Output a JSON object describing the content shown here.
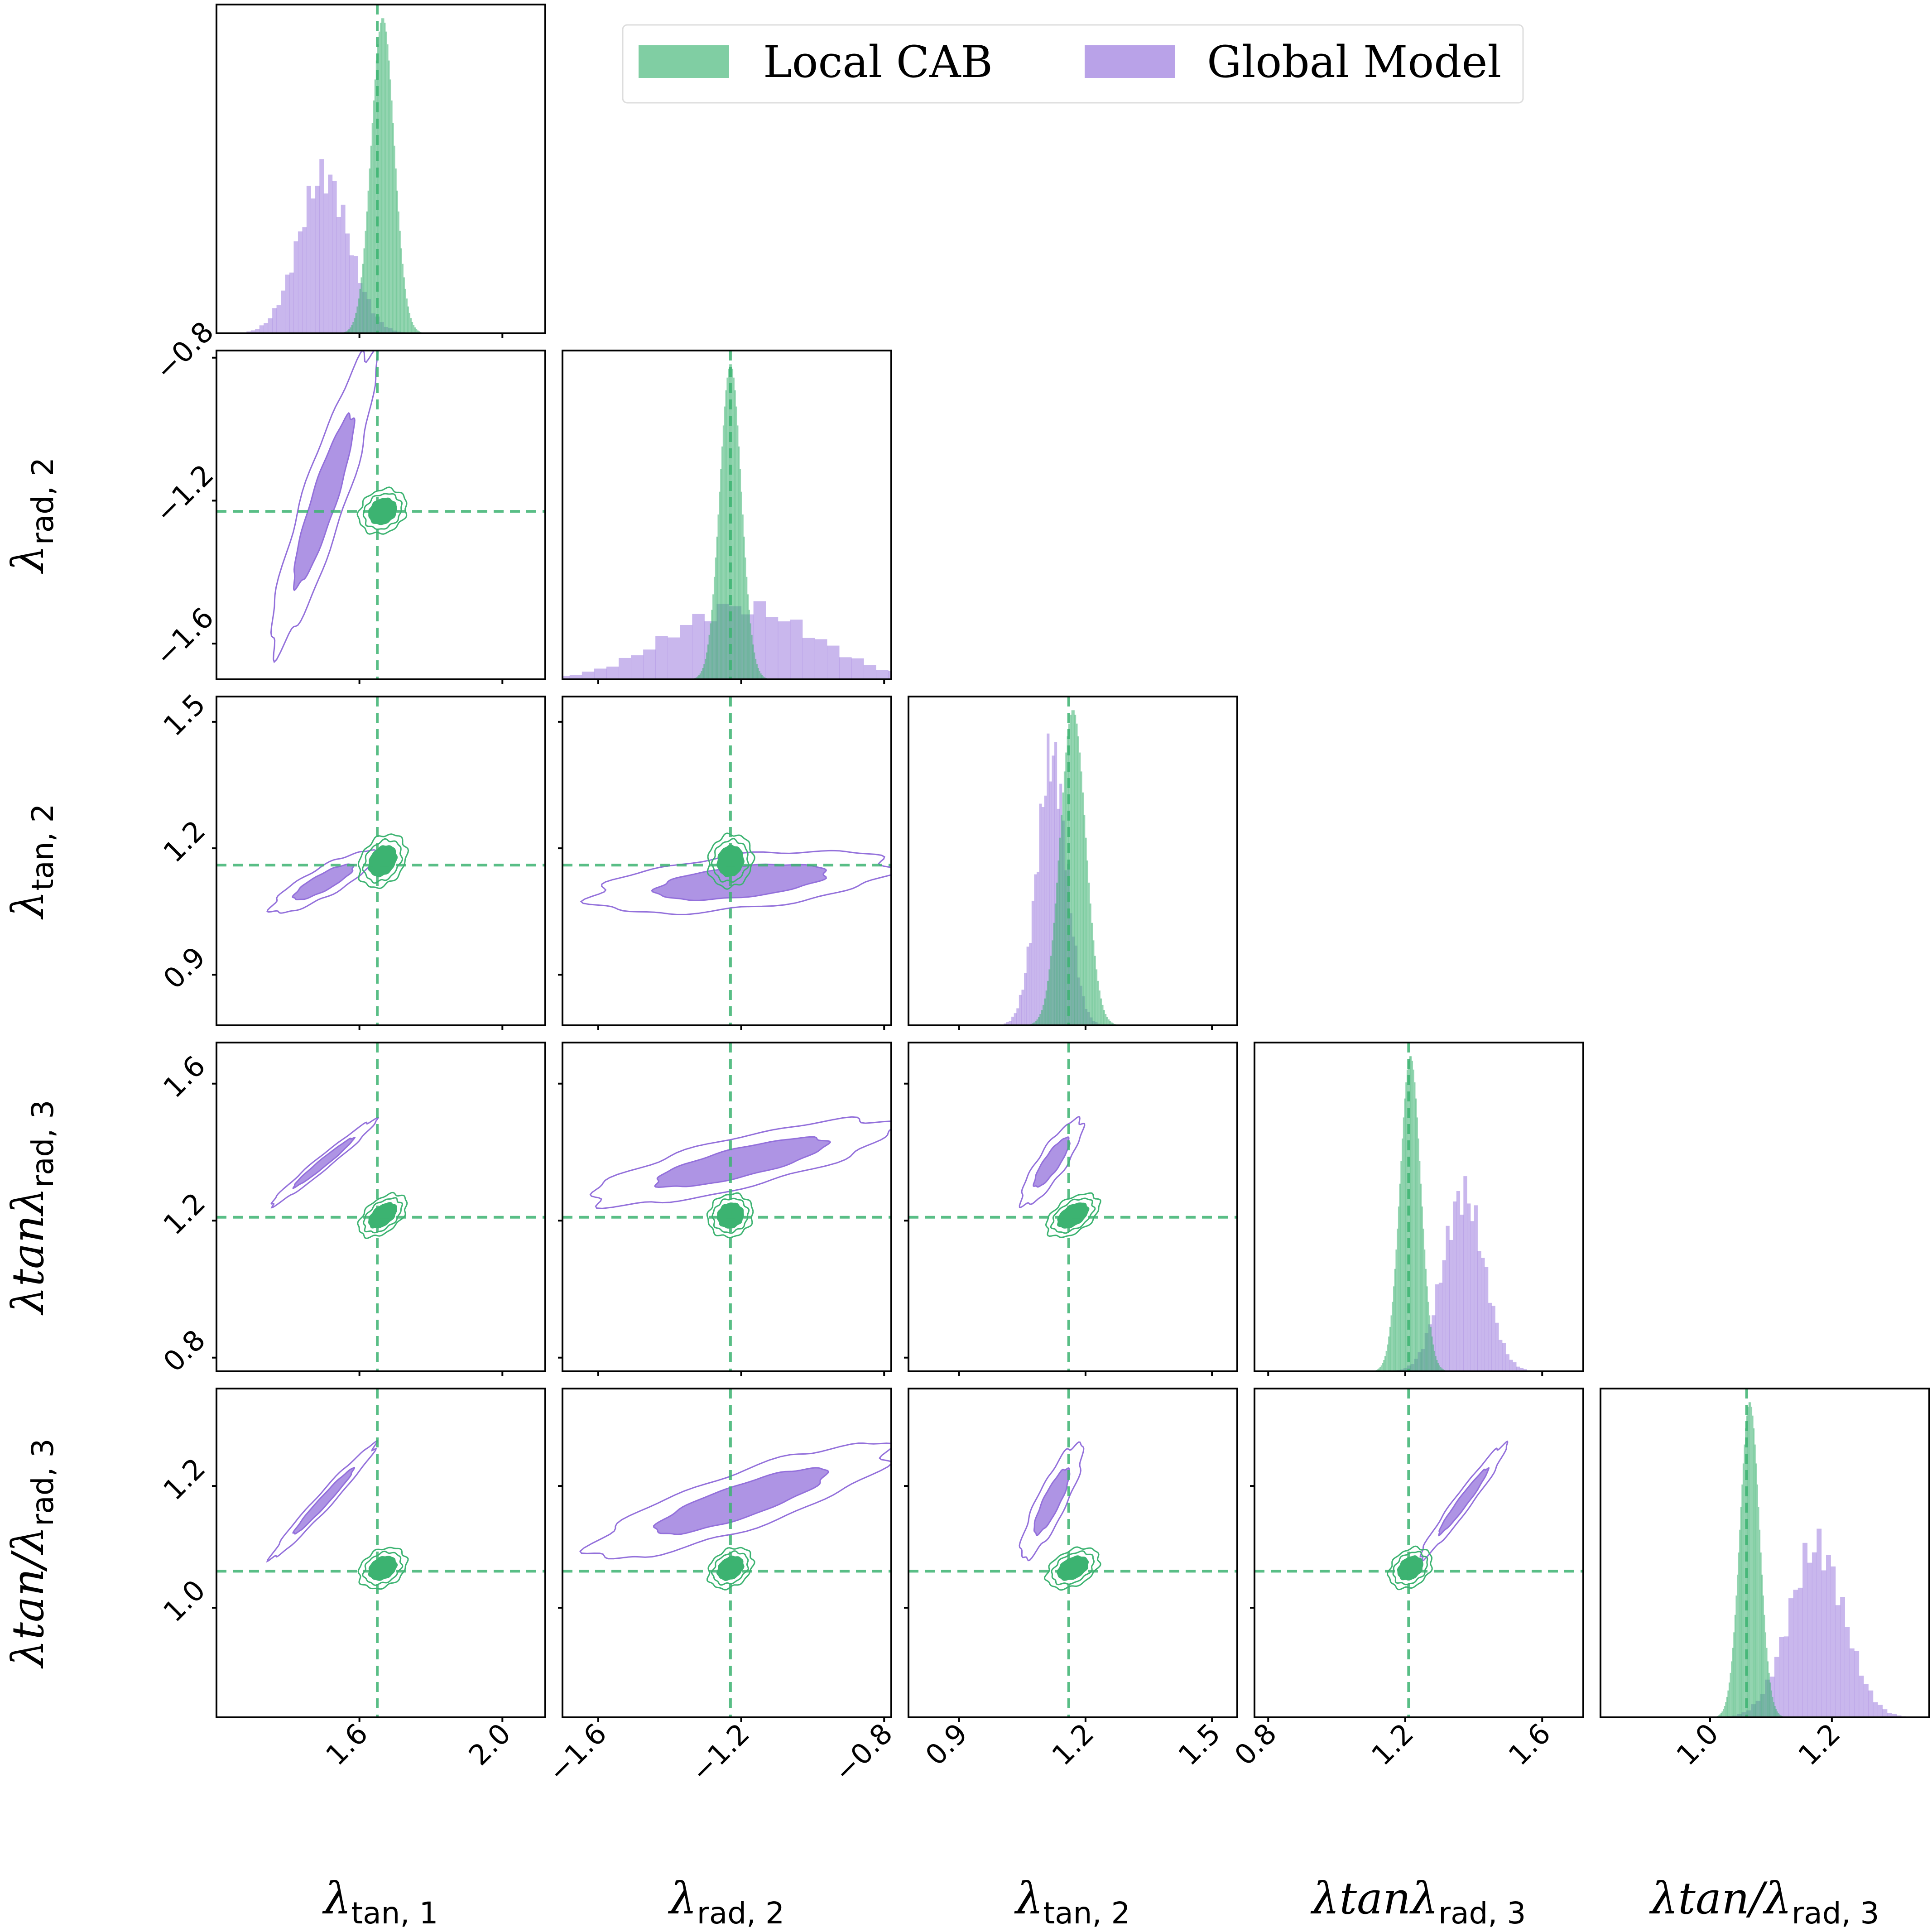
{
  "chart_data": {
    "type": "corner",
    "legend": {
      "placement": "top-center",
      "entries": [
        {
          "label": "Local CAB",
          "color": "#3cb371"
        },
        {
          "label": "Global Model",
          "color": "#9370db"
        }
      ]
    },
    "colors": {
      "local": "#3cb371",
      "global": "#9370db",
      "truth": "#3cb371"
    },
    "parameters": [
      {
        "name": "λtan,1",
        "sym": "λ",
        "sub": "tan, 1",
        "range": [
          1.2,
          2.12
        ],
        "ticks": [
          1.6,
          2.0
        ],
        "tick_labels": [
          "1.6",
          "2.0"
        ],
        "truth": 1.65
      },
      {
        "name": "λrad,2",
        "sym": "λ",
        "sub": "rad, 2",
        "range": [
          -1.7,
          -0.78
        ],
        "ticks": [
          -1.6,
          -1.2,
          -0.8
        ],
        "tick_labels": [
          "−1.6",
          "−1.2",
          "−0.8"
        ],
        "truth": -1.23
      },
      {
        "name": "λtan,2",
        "sym": "λ",
        "sub": "tan, 2",
        "range": [
          0.78,
          1.56
        ],
        "ticks": [
          0.9,
          1.2,
          1.5
        ],
        "tick_labels": [
          "0.9",
          "1.2",
          "1.5"
        ],
        "truth": 1.16
      },
      {
        "name": "λtanλrad,3",
        "sym": "λtanλ",
        "sub": "rad, 3",
        "range": [
          0.76,
          1.72
        ],
        "ticks": [
          0.8,
          1.2,
          1.6
        ],
        "tick_labels": [
          "0.8",
          "1.2",
          "1.6"
        ],
        "truth": 1.21
      },
      {
        "name": "λtan/λrad,3",
        "sym": "λtan/λ",
        "sub": "rad, 3",
        "range": [
          0.82,
          1.36
        ],
        "ticks": [
          1.0,
          1.2
        ],
        "tick_labels": [
          "1.0",
          "1.2"
        ],
        "truth": 1.06
      }
    ],
    "axis_labels": [
      {
        "main": "λ",
        "sub": "tan, 1"
      },
      {
        "main": "λ",
        "sub": "rad, 2"
      },
      {
        "main": "λ",
        "sub": "tan, 2"
      },
      {
        "main": "λtanλ",
        "sub": "rad, 3"
      },
      {
        "main": "λtan/λ",
        "sub": "rad, 3"
      }
    ],
    "marginals": {
      "local": [
        {
          "mean": 1.665,
          "sd": 0.032
        },
        {
          "mean": -1.23,
          "sd": 0.03
        },
        {
          "mean": 1.17,
          "sd": 0.03
        },
        {
          "mean": 1.215,
          "sd": 0.03
        },
        {
          "mean": 1.065,
          "sd": 0.016
        }
      ],
      "global": [
        {
          "mean": 1.5,
          "sd": 0.07
        },
        {
          "mean": -1.2,
          "sd": 0.2
        },
        {
          "mean": 1.12,
          "sd": 0.035
        },
        {
          "mean": 1.37,
          "sd": 0.06
        },
        {
          "mean": 1.175,
          "sd": 0.045
        }
      ]
    },
    "joint": {
      "local": [
        {
          "row": 1,
          "col": 0,
          "rho": 0.2
        },
        {
          "row": 2,
          "col": 0,
          "rho": 0.3
        },
        {
          "row": 2,
          "col": 1,
          "rho": 0.1
        },
        {
          "row": 3,
          "col": 0,
          "rho": 0.5
        },
        {
          "row": 3,
          "col": 1,
          "rho": 0.1
        },
        {
          "row": 3,
          "col": 2,
          "rho": 0.5
        },
        {
          "row": 4,
          "col": 0,
          "rho": 0.3
        },
        {
          "row": 4,
          "col": 1,
          "rho": 0.3
        },
        {
          "row": 4,
          "col": 2,
          "rho": 0.4
        },
        {
          "row": 4,
          "col": 3,
          "rho": 0.3
        }
      ],
      "global": [
        {
          "row": 1,
          "col": 0,
          "rho": 0.9
        },
        {
          "row": 2,
          "col": 0,
          "rho": 0.85
        },
        {
          "row": 2,
          "col": 1,
          "rho": 0.5
        },
        {
          "row": 3,
          "col": 0,
          "rho": 0.98
        },
        {
          "row": 3,
          "col": 1,
          "rho": 0.8
        },
        {
          "row": 3,
          "col": 2,
          "rho": 0.85
        },
        {
          "row": 4,
          "col": 0,
          "rho": 0.98
        },
        {
          "row": 4,
          "col": 1,
          "rho": 0.85
        },
        {
          "row": 4,
          "col": 2,
          "rho": 0.85
        },
        {
          "row": 4,
          "col": 3,
          "rho": 0.97
        }
      ]
    }
  }
}
